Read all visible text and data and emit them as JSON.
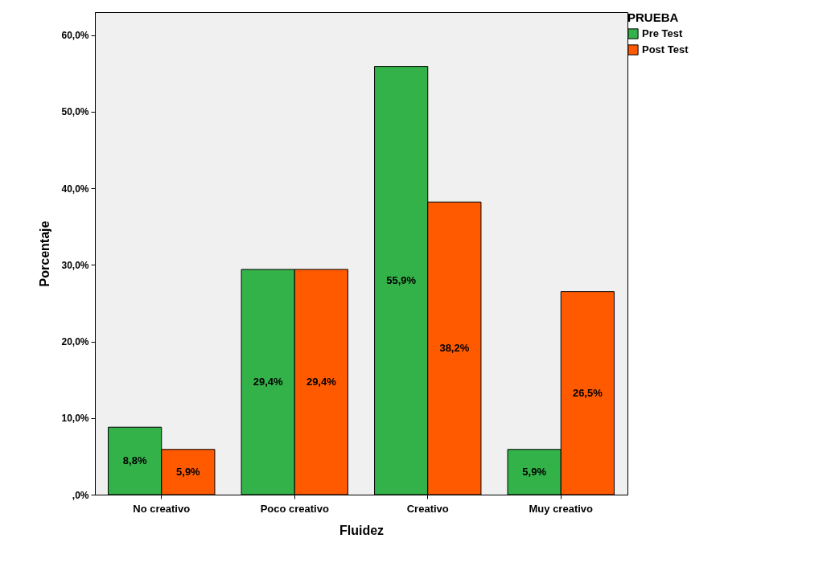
{
  "chart_data": {
    "type": "bar",
    "xlabel": "Fluidez",
    "ylabel": "Porcentaje",
    "legend_title": "PRUEBA",
    "legend": "top right",
    "grid": false,
    "categories": [
      "No creativo",
      "Poco creativo",
      "Creativo",
      "Muy creativo"
    ],
    "ylim": [
      0,
      63
    ],
    "yticks": [
      {
        "value": 0,
        "label": ",0%"
      },
      {
        "value": 10,
        "label": "10,0%"
      },
      {
        "value": 20,
        "label": "20,0%"
      },
      {
        "value": 30,
        "label": "30,0%"
      },
      {
        "value": 40,
        "label": "40,0%"
      },
      {
        "value": 50,
        "label": "50,0%"
      },
      {
        "value": 60,
        "label": "60,0%"
      }
    ],
    "series": [
      {
        "name": "Pre Test",
        "color": "#33b249",
        "values": [
          8.8,
          29.4,
          55.9,
          5.9
        ],
        "value_labels": [
          "8,8%",
          "29,4%",
          "55,9%",
          "5,9%"
        ]
      },
      {
        "name": "Post Test",
        "color": "#ff5a00",
        "values": [
          5.9,
          29.4,
          38.2,
          26.5
        ],
        "value_labels": [
          "5,9%",
          "29,4%",
          "38,2%",
          "26,5%"
        ]
      }
    ]
  }
}
